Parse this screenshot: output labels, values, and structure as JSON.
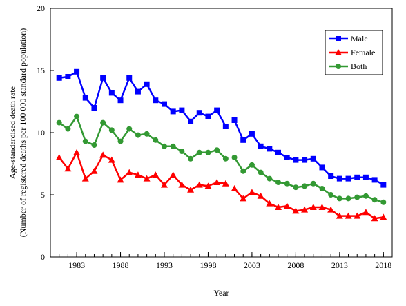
{
  "chart_data": {
    "type": "line",
    "xlabel": "Year",
    "ylabel_line1": "Age-standardised death rate",
    "ylabel_line2": "(Number of registered deaths per 100 000 standard population)",
    "ylim": [
      0,
      20
    ],
    "yticks": [
      0,
      5,
      10,
      15,
      20
    ],
    "xlim": [
      1980,
      2019
    ],
    "xticks": [
      1983,
      1988,
      1993,
      1998,
      2003,
      2008,
      2013,
      2018
    ],
    "grid": false,
    "legend_position": "top-right",
    "gaps_after": [
      2000
    ],
    "x": [
      1981,
      1982,
      1983,
      1984,
      1985,
      1986,
      1987,
      1988,
      1989,
      1990,
      1991,
      1992,
      1993,
      1994,
      1995,
      1996,
      1997,
      1998,
      1999,
      2000,
      2001,
      2002,
      2003,
      2004,
      2005,
      2006,
      2007,
      2008,
      2009,
      2010,
      2011,
      2012,
      2013,
      2014,
      2015,
      2016,
      2017,
      2018
    ],
    "series": [
      {
        "name": "Male",
        "color": "#0000ff",
        "marker": "square",
        "values": [
          14.4,
          14.5,
          14.9,
          12.8,
          12.0,
          14.4,
          13.2,
          12.6,
          14.4,
          13.3,
          13.9,
          12.6,
          12.3,
          11.7,
          11.8,
          10.9,
          11.6,
          11.3,
          11.8,
          10.5,
          11.0,
          9.4,
          9.9,
          8.9,
          8.7,
          8.4,
          8.0,
          7.8,
          7.8,
          7.9,
          7.2,
          6.5,
          6.3,
          6.3,
          6.4,
          6.4,
          6.2,
          5.8
        ]
      },
      {
        "name": "Female",
        "color": "#ff0000",
        "marker": "triangle",
        "values": [
          8.0,
          7.1,
          8.4,
          6.3,
          6.9,
          8.2,
          7.8,
          6.2,
          6.8,
          6.6,
          6.3,
          6.6,
          5.8,
          6.6,
          5.8,
          5.4,
          5.8,
          5.7,
          6.0,
          5.9,
          5.5,
          4.7,
          5.2,
          4.9,
          4.3,
          4.0,
          4.1,
          3.7,
          3.8,
          4.0,
          4.0,
          3.8,
          3.3,
          3.3,
          3.3,
          3.6,
          3.1,
          3.2
        ]
      },
      {
        "name": "Both",
        "color": "#339933",
        "marker": "circle",
        "values": [
          10.8,
          10.3,
          11.3,
          9.3,
          9.0,
          10.8,
          10.2,
          9.3,
          10.3,
          9.8,
          9.9,
          9.4,
          8.9,
          8.9,
          8.5,
          7.9,
          8.4,
          8.4,
          8.6,
          7.9,
          8.0,
          6.9,
          7.4,
          6.8,
          6.3,
          6.0,
          5.9,
          5.6,
          5.7,
          5.9,
          5.5,
          5.0,
          4.7,
          4.7,
          4.8,
          4.9,
          4.6,
          4.4
        ]
      }
    ]
  }
}
